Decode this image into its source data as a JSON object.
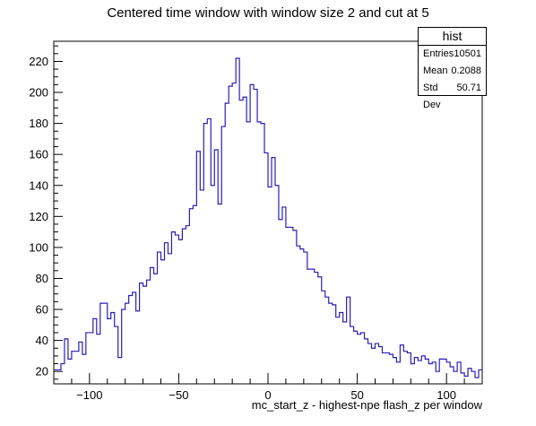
{
  "chart_data": {
    "type": "bar",
    "title": "Centered time window with window size 2 and cut at 5",
    "xlabel": "mc_start_z - highest-npe flash_z per window",
    "ylabel": "",
    "xlim": [
      -120,
      120
    ],
    "ylim": [
      12,
      233
    ],
    "xticks": [
      -100,
      -50,
      0,
      50,
      100
    ],
    "yticks": [
      20,
      40,
      60,
      80,
      100,
      120,
      140,
      160,
      180,
      200,
      220
    ],
    "xticks_labels": [
      "−100",
      "−50",
      "0",
      "50",
      "100"
    ],
    "bin_width": 2,
    "series": [
      {
        "name": "hist",
        "values": [
          21,
          21,
          25,
          41,
          28,
          33,
          33,
          39,
          31,
          45,
          45,
          54,
          44,
          64,
          64,
          54,
          58,
          49,
          29,
          60,
          64,
          69,
          71,
          59,
          77,
          75,
          79,
          87,
          83,
          97,
          92,
          103,
          96,
          110,
          108,
          105,
          112,
          114,
          125,
          127,
          162,
          137,
          180,
          183,
          140,
          163,
          128,
          178,
          193,
          204,
          206,
          222,
          195,
          197,
          181,
          205,
          202,
          181,
          180,
          161,
          139,
          158,
          140,
          118,
          126,
          113,
          113,
          111,
          101,
          99,
          97,
          86,
          86,
          84,
          81,
          72,
          68,
          64,
          63,
          55,
          58,
          52,
          68,
          49,
          46,
          44,
          45,
          41,
          38,
          35,
          38,
          36,
          32,
          32,
          31,
          29,
          26,
          37,
          33,
          32,
          25,
          29,
          27,
          30,
          28,
          25,
          26,
          20,
          28,
          28,
          26,
          23,
          20,
          26,
          19,
          17,
          22,
          20,
          16,
          21
        ]
      }
    ]
  },
  "stats_box": {
    "title": "hist",
    "entries_label": "Entries",
    "entries_value": "10501",
    "mean_label": "Mean",
    "mean_value": "0.2088",
    "std_label": "Std Dev",
    "std_value": "50.71"
  },
  "colors": {
    "line": "#2a1fb8",
    "axis": "#000000"
  }
}
